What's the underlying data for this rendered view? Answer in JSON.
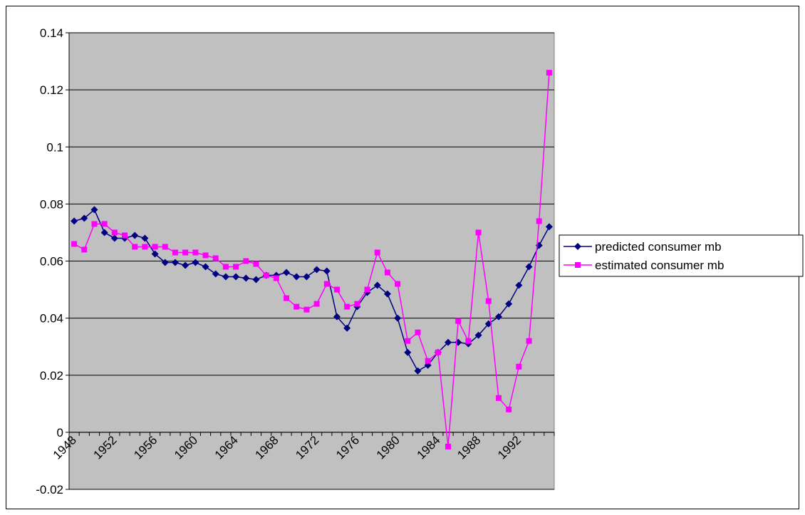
{
  "chart_data": {
    "type": "line",
    "categories": [
      "1948",
      null,
      null,
      null,
      "1952",
      null,
      null,
      null,
      "1956",
      null,
      null,
      null,
      "1960",
      null,
      null,
      null,
      "1964",
      null,
      null,
      null,
      "1968",
      null,
      null,
      null,
      "1972",
      null,
      null,
      null,
      "1976",
      null,
      null,
      null,
      "1980",
      null,
      null,
      null,
      "1984",
      null,
      null,
      null,
      "1988",
      null,
      null,
      null,
      "1992",
      null,
      null,
      null
    ],
    "series": [
      {
        "name": "predicted consumer mb",
        "color": "#000080",
        "marker": "diamond",
        "values": [
          0.074,
          0.075,
          0.078,
          0.07,
          0.068,
          0.068,
          0.069,
          0.068,
          0.0625,
          0.0595,
          0.0595,
          0.0585,
          0.0595,
          0.058,
          0.0555,
          0.0545,
          0.0545,
          0.054,
          0.0535,
          0.055,
          0.055,
          0.056,
          0.0545,
          0.0545,
          0.057,
          0.0565,
          0.0405,
          0.0365,
          0.044,
          0.049,
          0.0515,
          0.0485,
          0.04,
          0.028,
          0.0215,
          0.0235,
          0.028,
          0.0315,
          0.0315,
          0.031,
          0.034,
          0.038,
          0.0405,
          0.045,
          0.0515,
          0.058,
          0.0655,
          0.072
        ]
      },
      {
        "name": "estimated consumer mb",
        "color": "#ff00ff",
        "marker": "square",
        "values": [
          0.066,
          0.064,
          0.073,
          0.073,
          0.07,
          0.069,
          0.065,
          0.065,
          0.065,
          0.065,
          0.063,
          0.063,
          0.063,
          0.062,
          0.061,
          0.058,
          0.058,
          0.06,
          0.059,
          0.055,
          0.054,
          0.047,
          0.044,
          0.043,
          0.045,
          0.052,
          0.05,
          0.044,
          0.045,
          0.05,
          0.063,
          0.056,
          0.052,
          0.032,
          0.035,
          0.025,
          0.028,
          -0.005,
          0.039,
          0.032,
          0.07,
          0.046,
          0.012,
          0.008,
          0.023,
          0.032,
          0.074,
          0.126
        ]
      }
    ],
    "ylim": [
      -0.02,
      0.14
    ],
    "yticks": [
      -0.02,
      0,
      0.02,
      0.04,
      0.06,
      0.08,
      0.1,
      0.12,
      0.14
    ],
    "grid": true,
    "legend": "right",
    "plot_background": "#c0c0c0"
  }
}
